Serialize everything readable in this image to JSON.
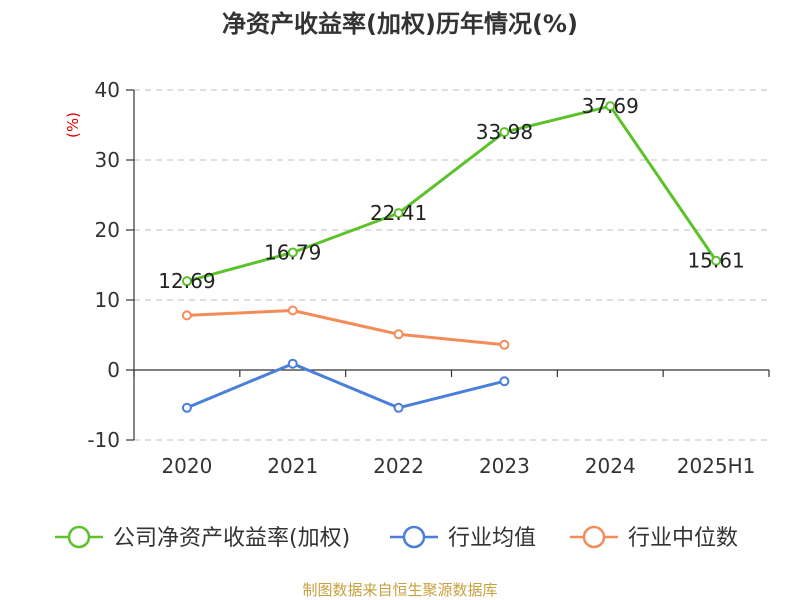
{
  "chart_data": {
    "type": "line",
    "title": "净资产收益率(加权)历年情况(%)",
    "ylabel": "(%)",
    "xlabel": "",
    "categories": [
      "2020",
      "2021",
      "2022",
      "2023",
      "2024",
      "2025H1"
    ],
    "yticks": [
      "40",
      "30",
      "20",
      "10",
      "0",
      "-10"
    ],
    "ylim": [
      -10,
      40
    ],
    "grid": true,
    "legend_position": "bottom",
    "series": [
      {
        "name": "公司净资产收益率(加权)",
        "color": "#5cc22a",
        "values": [
          12.69,
          16.79,
          22.41,
          33.98,
          37.69,
          15.61
        ],
        "labels": [
          "12.69",
          "16.79",
          "22.41",
          "33.98",
          "37.69",
          "15.61"
        ]
      },
      {
        "name": "行业均值",
        "color": "#4a7fd9",
        "values": [
          -5.4,
          0.9,
          -5.4,
          -1.6,
          null,
          null
        ]
      },
      {
        "name": "行业中位数",
        "color": "#f48c5a",
        "values": [
          7.8,
          8.5,
          5.1,
          3.6,
          null,
          null
        ]
      }
    ]
  },
  "source": "制图数据来自恒生聚源数据库",
  "colors": {
    "unit": "#dd0000",
    "source": "#c8a040",
    "grid": "#cccccc",
    "axis": "#333333"
  }
}
